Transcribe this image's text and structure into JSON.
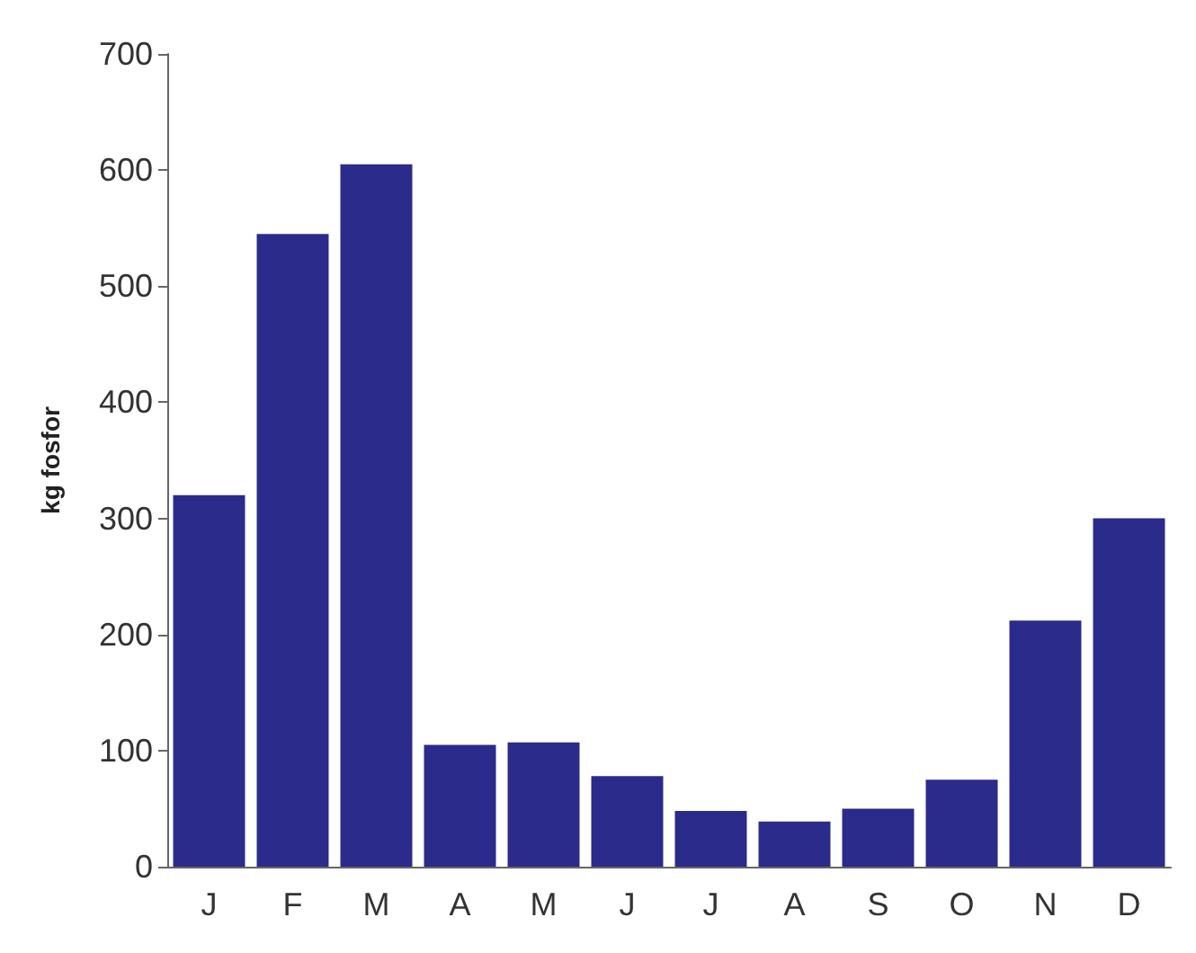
{
  "chart_data": {
    "type": "bar",
    "ylabel": "kg fosfor",
    "categories": [
      "J",
      "F",
      "M",
      "A",
      "M",
      "J",
      "J",
      "A",
      "S",
      "O",
      "N",
      "D"
    ],
    "values": [
      320,
      545,
      605,
      105,
      107,
      78,
      48,
      39,
      50,
      75,
      212,
      300
    ],
    "color": "#2b2b8c",
    "ylim": [
      0,
      700
    ],
    "yticks": [
      0,
      100,
      200,
      300,
      400,
      500,
      600,
      700
    ],
    "grid": false
  }
}
